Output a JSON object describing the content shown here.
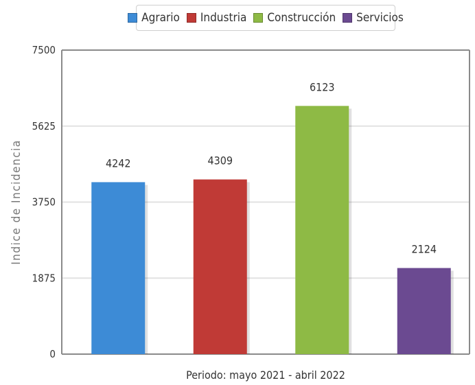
{
  "chart_data": {
    "type": "bar",
    "categories": [
      "Agrario",
      "Industria",
      "Construcción",
      "Servicios"
    ],
    "values": [
      4242,
      4309,
      6123,
      2124
    ],
    "colors": [
      "#3d8bd6",
      "#c03a36",
      "#8eba45",
      "#6b4a91"
    ],
    "title": "",
    "xlabel": "Periodo: mayo 2021 - abril 2022",
    "ylabel": "Indice de Incidencia",
    "ylim": [
      0,
      7500
    ],
    "yticks": [
      "0",
      "1875",
      "3750",
      "5625",
      "7500"
    ],
    "grid": true,
    "legend": "top-center"
  }
}
